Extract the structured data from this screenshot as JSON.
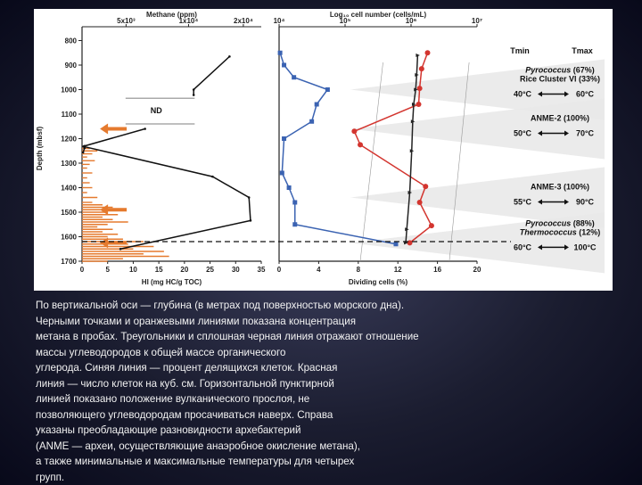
{
  "chart_data": [
    {
      "type": "line",
      "panel": "left",
      "top_xlabel": "Methane (ppm)",
      "top_ticks": [
        "5x10³",
        "1x10⁴",
        "2x10⁴"
      ],
      "xlabel": "HI (mg HC/g TOC)",
      "x_ticks": [
        "0",
        "5",
        "10",
        "15",
        "20",
        "25",
        "30",
        "35"
      ],
      "xlim": [
        0,
        35
      ],
      "ylabel": "Depth (mbsf)",
      "y_ticks": [
        "800",
        "900",
        "1000",
        "1100",
        "1200",
        "1300",
        "1400",
        "1500",
        "1600",
        "1700"
      ],
      "ylim": [
        1700,
        780
      ],
      "nd_label": "ND",
      "methane_segments": [
        [
          [
            28.8,
            865
          ],
          [
            21.8,
            1000
          ],
          [
            21.8,
            1022
          ]
        ],
        [
          [
            12.3,
            1160
          ],
          [
            0.5,
            1230
          ],
          [
            0.5,
            1238
          ],
          [
            0.2,
            1256
          ]
        ],
        [
          [
            0.3,
            1232
          ],
          [
            25.5,
            1355
          ],
          [
            32.6,
            1440
          ],
          [
            32.9,
            1534
          ],
          [
            7.5,
            1650
          ]
        ]
      ],
      "hi_bars": [
        [
          1240,
          1.5
        ],
        [
          1250,
          3
        ],
        [
          1262,
          2
        ],
        [
          1275,
          1
        ],
        [
          1290,
          2.5
        ],
        [
          1305,
          1.5
        ],
        [
          1320,
          1
        ],
        [
          1340,
          2
        ],
        [
          1360,
          1
        ],
        [
          1380,
          1.5
        ],
        [
          1400,
          2
        ],
        [
          1420,
          1
        ],
        [
          1440,
          3
        ],
        [
          1460,
          2
        ],
        [
          1470,
          4
        ],
        [
          1480,
          6
        ],
        [
          1490,
          8
        ],
        [
          1500,
          5
        ],
        [
          1510,
          7
        ],
        [
          1520,
          4
        ],
        [
          1530,
          6
        ],
        [
          1540,
          9
        ],
        [
          1550,
          5
        ],
        [
          1560,
          3
        ],
        [
          1570,
          6
        ],
        [
          1580,
          4
        ],
        [
          1590,
          7
        ],
        [
          1600,
          5
        ],
        [
          1610,
          8
        ],
        [
          1620,
          12
        ],
        [
          1630,
          9
        ],
        [
          1640,
          14
        ],
        [
          1650,
          10
        ],
        [
          1660,
          16
        ],
        [
          1670,
          12
        ],
        [
          1680,
          17
        ],
        [
          1690,
          8
        ],
        [
          1700,
          5
        ]
      ],
      "arrow_depths": [
        1160,
        1490,
        1625
      ],
      "dashed_line_depth": 1620
    },
    {
      "type": "line",
      "panel": "right",
      "top_xlabel": "Log₁₀ cell number (cells/mL)",
      "top_ticks": [
        "10⁴",
        "10⁵",
        "10⁶",
        "10⁷"
      ],
      "xlabel": "Dividing cells (%)",
      "x_ticks": [
        "0",
        "4",
        "8",
        "12",
        "16",
        "20"
      ],
      "xlim": [
        0,
        20
      ],
      "ylim": [
        1700,
        780
      ],
      "series": [
        {
          "color": "#3b63b2",
          "points": [
            [
              0.1,
              850
            ],
            [
              0.5,
              900
            ],
            [
              1.5,
              950
            ],
            [
              4.9,
              1000
            ],
            [
              3.8,
              1060
            ],
            [
              3.3,
              1130
            ],
            [
              0.5,
              1200
            ],
            [
              0.3,
              1340
            ],
            [
              1.0,
              1400
            ],
            [
              1.6,
              1460
            ],
            [
              1.6,
              1550
            ],
            [
              11.8,
              1630
            ]
          ]
        },
        {
          "color": "#d3352f",
          "points": [
            [
              15.0,
              850
            ],
            [
              14.4,
              915
            ],
            [
              14.2,
              995
            ],
            [
              14.1,
              1060
            ],
            [
              7.6,
              1170
            ],
            [
              8.2,
              1225
            ],
            [
              14.8,
              1395
            ],
            [
              14.2,
              1460
            ],
            [
              15.4,
              1555
            ],
            [
              13.2,
              1625
            ]
          ]
        },
        {
          "color": "#222222",
          "points": [
            [
              14.0,
              860
            ],
            [
              13.9,
              940
            ],
            [
              13.8,
              1000
            ],
            [
              13.6,
              1060
            ],
            [
              13.5,
              1130
            ],
            [
              13.4,
              1250
            ],
            [
              13.2,
              1420
            ],
            [
              12.9,
              1570
            ],
            [
              12.8,
              1625
            ]
          ]
        }
      ],
      "dashed_line_depth": 1620
    }
  ],
  "legend": {
    "tmin": "Tmin",
    "tmax": "Tmax",
    "groups": [
      {
        "lines": [
          [
            {
              "text": "Pyrococcus",
              "italic": true
            },
            {
              "text": " (67%)",
              "italic": false
            }
          ],
          [
            {
              "text": "Rice Cluster VI",
              "italic": false
            },
            {
              "text": " (33%)",
              "italic": false
            }
          ]
        ],
        "tmin": "40°C",
        "tmax": "60°C",
        "depth": 1000
      },
      {
        "lines": [
          [
            {
              "text": "ANME-2 (100%)",
              "italic": false
            }
          ]
        ],
        "tmin": "50°C",
        "tmax": "70°C",
        "depth": 1160
      },
      {
        "lines": [
          [
            {
              "text": "ANME-3 (100%)",
              "italic": false
            }
          ]
        ],
        "tmin": "55°C",
        "tmax": "90°C",
        "depth": 1440
      },
      {
        "lines": [
          [
            {
              "text": "Pyrococcus",
              "italic": true
            },
            {
              "text": " (88%)",
              "italic": false
            }
          ],
          [
            {
              "text": "Thermococcus",
              "italic": true
            },
            {
              "text": " (12%)",
              "italic": false
            }
          ]
        ],
        "tmin": "60°C",
        "tmax": "100°C",
        "depth": 1625
      }
    ]
  },
  "caption": [
    "По вертикальной оси — глубина (в метрах под поверхностью морского дна).",
    "Черными точками и оранжевыми линиями показана концентрация",
    "метана в пробах. Треугольники и сплошная черная линия отражают отношение",
    "массы углеводородов к общей массе органического",
    "углерода. Синяя линия — процент делящихся клеток. Красная",
    "линия — число клеток на куб. см. Горизонтальной пунктирной",
    "линией показано положение вулканического прослоя, не",
    "позволяющего углеводородам просачиваться наверх. Справа",
    "указаны преобладающие разновидности архебактерий",
    "(ANME — археи, осуществляющие анаэробное окисление метана),",
    "а также минимальные и максимальные температуры для четырех",
    "групп."
  ],
  "colors": {
    "blue": "#3b63b2",
    "red": "#d3352f",
    "orange": "#e57a2e",
    "green": "#2fa63a",
    "tmin_green": "#1fa046",
    "tmax_orange": "#ee8a2a"
  }
}
